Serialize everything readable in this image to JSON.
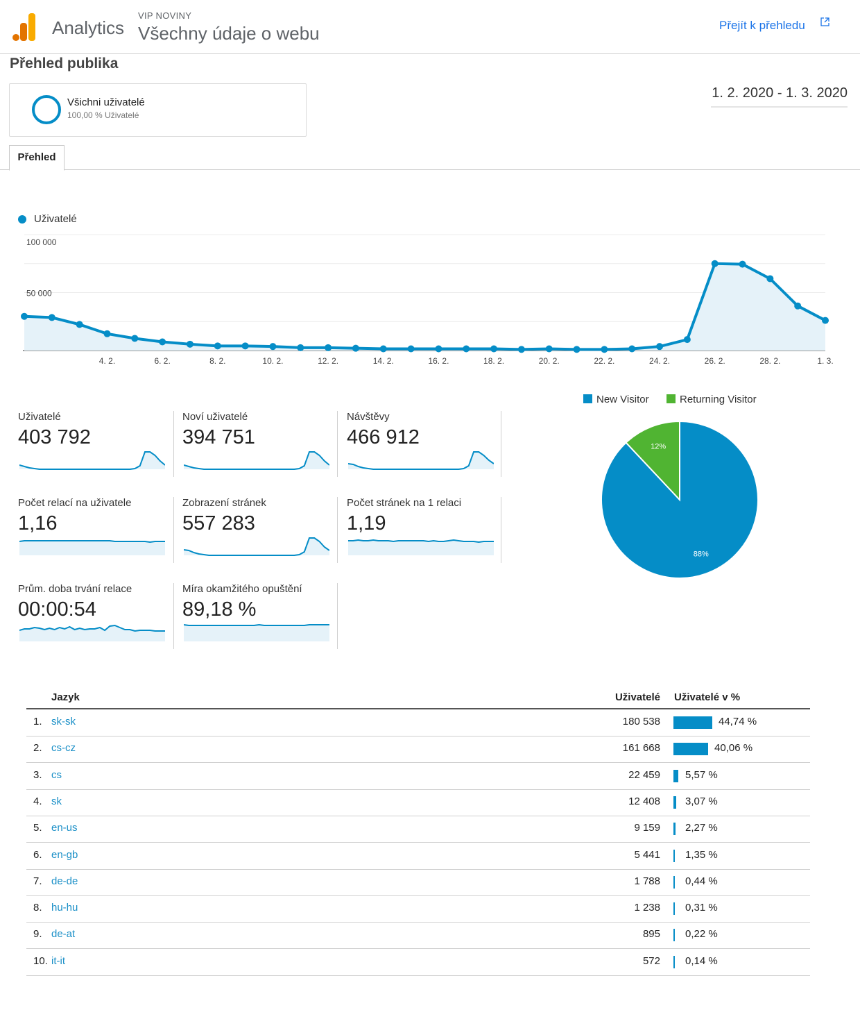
{
  "header": {
    "app_name": "Analytics",
    "account": "VIP NOVINY",
    "view": "Všechny údaje o webu",
    "goto_link": "Přejít k přehledu",
    "logo_colors": [
      "#f9ab00",
      "#e37400"
    ]
  },
  "page": {
    "title": "Přehled publika",
    "segment_name": "Všichni uživatelé",
    "segment_pct": "100,00 % Uživatelé",
    "date_range": "1. 2. 2020 - 1. 3. 2020",
    "tab_overview": "Přehled"
  },
  "accent_color": "#058dc7",
  "chart_data": [
    {
      "type": "area",
      "legend": "Uživatelé",
      "ylim": [
        0,
        100000
      ],
      "y_tick_labels": [
        "100 000",
        "50 000"
      ],
      "x_tick_labels": [
        "4. 2.",
        "6. 2.",
        "8. 2.",
        "10. 2.",
        "12. 2.",
        "14. 2.",
        "16. 2.",
        "18. 2.",
        "20. 2.",
        "22. 2.",
        "24. 2.",
        "26. 2.",
        "28. 2.",
        "1. 3."
      ],
      "x": [
        "1. 2.",
        "2. 2.",
        "3. 2.",
        "4. 2.",
        "5. 2.",
        "6. 2.",
        "7. 2.",
        "8. 2.",
        "9. 2.",
        "10. 2.",
        "11. 2.",
        "12. 2.",
        "13. 2.",
        "14. 2.",
        "15. 2.",
        "16. 2.",
        "17. 2.",
        "18. 2.",
        "19. 2.",
        "20. 2.",
        "21. 2.",
        "22. 2.",
        "23. 2.",
        "24. 2.",
        "25. 2.",
        "26. 2.",
        "27. 2.",
        "28. 2.",
        "29. 2.",
        "1. 3."
      ],
      "values": [
        29500,
        28500,
        22500,
        14500,
        10500,
        7500,
        5500,
        4000,
        4000,
        3500,
        2500,
        2500,
        2000,
        1500,
        1500,
        1500,
        1500,
        1500,
        1000,
        1500,
        1000,
        1000,
        1500,
        3500,
        9500,
        75000,
        74500,
        62000,
        38500,
        26000
      ],
      "grid": true
    },
    {
      "type": "pie",
      "series": [
        {
          "name": "New Visitor",
          "value": 88,
          "label": "88%",
          "color": "#058dc7"
        },
        {
          "name": "Returning Visitor",
          "value": 12,
          "label": "12%",
          "color": "#50b432"
        }
      ]
    }
  ],
  "metrics": [
    {
      "label": "Uživatelé",
      "value": "403 792",
      "spark": [
        20,
        22,
        24,
        25,
        26,
        26,
        26,
        26,
        26,
        26,
        26,
        26,
        26,
        26,
        26,
        26,
        26,
        26,
        26,
        26,
        26,
        26,
        26,
        25,
        21,
        1,
        1,
        6,
        14,
        20
      ]
    },
    {
      "label": "Noví uživatelé",
      "value": "394 751",
      "spark": [
        20,
        22,
        24,
        25,
        26,
        26,
        26,
        26,
        26,
        26,
        26,
        26,
        26,
        26,
        26,
        26,
        26,
        26,
        26,
        26,
        26,
        26,
        26,
        25,
        21,
        1,
        1,
        6,
        14,
        20
      ]
    },
    {
      "label": "Návštěvy",
      "value": "466 912",
      "spark": [
        18,
        19,
        22,
        24,
        25,
        26,
        26,
        26,
        26,
        26,
        26,
        26,
        26,
        26,
        26,
        26,
        26,
        26,
        26,
        26,
        26,
        26,
        26,
        25,
        21,
        1,
        1,
        6,
        13,
        18
      ]
    },
    {
      "label": "Počet relací na uživatele",
      "value": "1,16",
      "spark": [
        6,
        5,
        5,
        5,
        5,
        5,
        5,
        5,
        5,
        5,
        5,
        5,
        5,
        5,
        5,
        5,
        5,
        5,
        5,
        6,
        6,
        6,
        6,
        6,
        6,
        6,
        7,
        6,
        6,
        6
      ]
    },
    {
      "label": "Zobrazení stránek",
      "value": "557 283",
      "spark": [
        18,
        19,
        22,
        24,
        25,
        26,
        26,
        26,
        26,
        26,
        26,
        26,
        26,
        26,
        26,
        26,
        26,
        26,
        26,
        26,
        26,
        26,
        26,
        25,
        21,
        1,
        1,
        6,
        14,
        19
      ]
    },
    {
      "label": "Počet stránek na 1 relaci",
      "value": "1,19",
      "spark": [
        5,
        5,
        4,
        5,
        5,
        4,
        5,
        5,
        5,
        6,
        5,
        5,
        5,
        5,
        5,
        5,
        6,
        5,
        6,
        6,
        5,
        4,
        5,
        6,
        6,
        6,
        7,
        6,
        6,
        6
      ]
    },
    {
      "label": "Prům. doba trvání relace",
      "value": "00:00:54",
      "spark": [
        10,
        8,
        8,
        6,
        7,
        9,
        7,
        9,
        6,
        8,
        5,
        9,
        7,
        9,
        8,
        8,
        6,
        10,
        4,
        3,
        6,
        9,
        9,
        11,
        10,
        10,
        10,
        11,
        11,
        11
      ]
    },
    {
      "label": "Míra okamžitého opuštění",
      "value": "89,18 %",
      "spark": [
        2,
        3,
        3,
        3,
        3,
        3,
        3,
        3,
        3,
        3,
        3,
        3,
        3,
        3,
        3,
        2,
        3,
        3,
        3,
        3,
        3,
        3,
        3,
        3,
        3,
        2,
        2,
        2,
        2,
        2
      ]
    }
  ],
  "table": {
    "col_language": "Jazyk",
    "col_users": "Uživatelé",
    "col_users_pct": "Uživatelé v %",
    "rows": [
      {
        "idx": "1.",
        "lang": "sk-sk",
        "users": "180 538",
        "pct": "44,74 %",
        "pct_value": 44.74
      },
      {
        "idx": "2.",
        "lang": "cs-cz",
        "users": "161 668",
        "pct": "40,06 %",
        "pct_value": 40.06
      },
      {
        "idx": "3.",
        "lang": "cs",
        "users": "22 459",
        "pct": "5,57 %",
        "pct_value": 5.57
      },
      {
        "idx": "4.",
        "lang": "sk",
        "users": "12 408",
        "pct": "3,07 %",
        "pct_value": 3.07
      },
      {
        "idx": "5.",
        "lang": "en-us",
        "users": "9 159",
        "pct": "2,27 %",
        "pct_value": 2.27
      },
      {
        "idx": "6.",
        "lang": "en-gb",
        "users": "5 441",
        "pct": "1,35 %",
        "pct_value": 1.35
      },
      {
        "idx": "7.",
        "lang": "de-de",
        "users": "1 788",
        "pct": "0,44 %",
        "pct_value": 0.44
      },
      {
        "idx": "8.",
        "lang": "hu-hu",
        "users": "1 238",
        "pct": "0,31 %",
        "pct_value": 0.31
      },
      {
        "idx": "9.",
        "lang": "de-at",
        "users": "895",
        "pct": "0,22 %",
        "pct_value": 0.22
      },
      {
        "idx": "10.",
        "lang": "it-it",
        "users": "572",
        "pct": "0,14 %",
        "pct_value": 0.14
      }
    ]
  }
}
